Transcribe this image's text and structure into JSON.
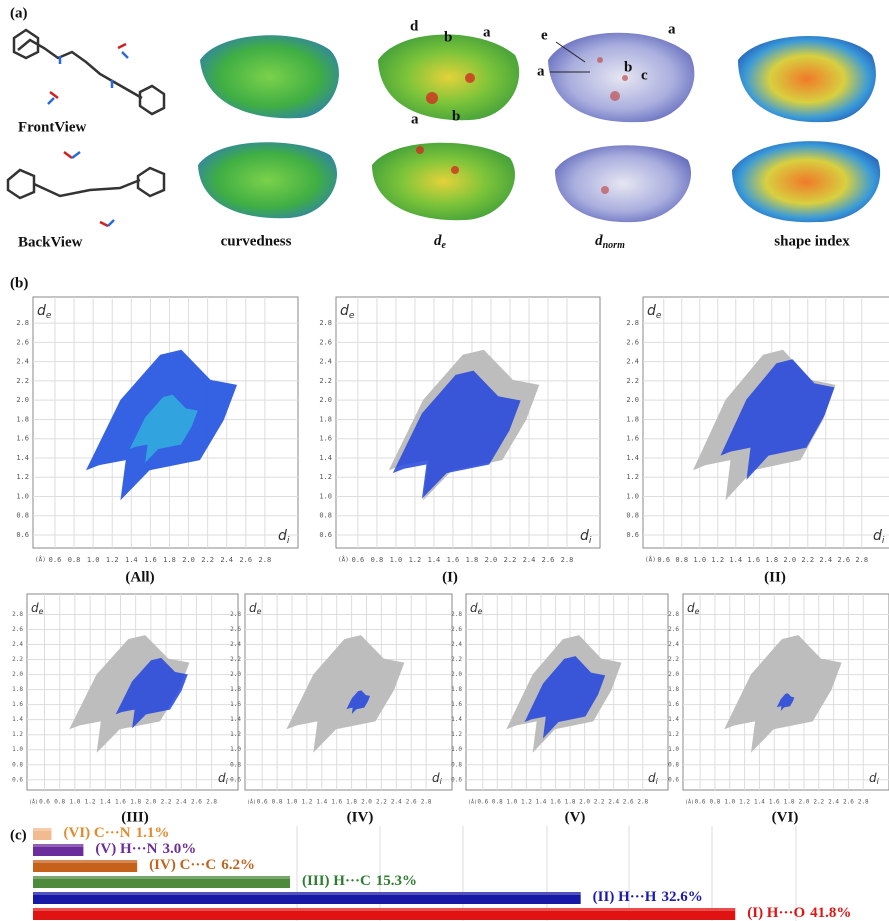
{
  "panel_a": {
    "label": "(a)",
    "views": [
      "FrontView",
      "BackView"
    ],
    "surfaces": [
      {
        "label": "curvedness"
      },
      {
        "label": "d",
        "sub": "e"
      },
      {
        "label": "d",
        "sub": "norm"
      },
      {
        "label": "shape index"
      }
    ],
    "de_marks": [
      "d",
      "b",
      "a",
      "a",
      "b"
    ],
    "dnorm_marks": [
      "e",
      "a",
      "a",
      "b",
      "c"
    ]
  },
  "panel_b": {
    "label": "(b)",
    "y_axis": "d",
    "y_axis_sub": "e",
    "x_axis": "d",
    "x_axis_sub": "i",
    "unit": "(Å)",
    "yticks": [
      "0.6",
      "0.8",
      "1.0",
      "1.2",
      "1.4",
      "1.6",
      "1.8",
      "2.0",
      "2.2",
      "2.4",
      "2.6",
      "2.8"
    ],
    "xticks": [
      "0.6",
      "0.8",
      "1.0",
      "1.2",
      "1.4",
      "1.6",
      "1.8",
      "2.0",
      "2.2",
      "2.4",
      "2.6",
      "2.8"
    ],
    "plots": [
      "(All)",
      "(I)",
      "(II)",
      "(III)",
      "(IV)",
      "(V)",
      "(VI)"
    ]
  },
  "chart_data": {
    "type": "bar",
    "label": "(c)",
    "categories": [
      "(VI) C···N",
      "(V) H···N",
      "(IV) C···C",
      "(III) H···C",
      "(II) H···H",
      "(I) H···O"
    ],
    "values": [
      1.1,
      3.0,
      6.2,
      15.3,
      32.6,
      41.8
    ],
    "value_labels": [
      "1.1%",
      "3.0%",
      "6.2%",
      "15.3%",
      "32.6%",
      "41.8%"
    ],
    "colors": [
      "#f2bb8f",
      "#6b2d9c",
      "#c6611c",
      "#4d8a3c",
      "#1818a6",
      "#e01212"
    ],
    "label_colors": [
      "#e38a2a",
      "#6b2d9c",
      "#c0641e",
      "#2e7d32",
      "#1a1ab0",
      "#e01212"
    ]
  }
}
